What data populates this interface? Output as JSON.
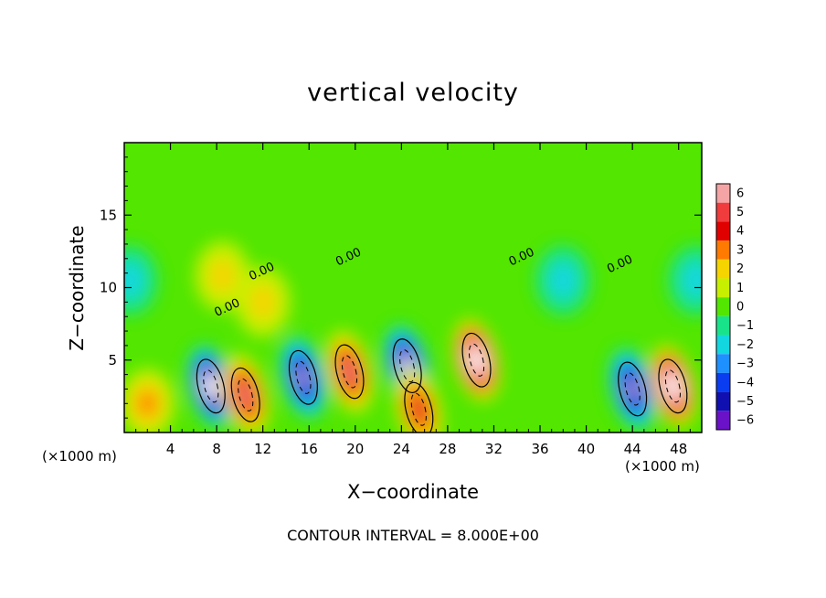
{
  "chart_data": {
    "type": "heatmap",
    "title": "vertical velocity",
    "xlabel": "X−coordinate",
    "ylabel": "Z−coordinate",
    "x_unit_left": "(×1000 m)",
    "x_unit_right": "(×1000 m)",
    "note": "CONTOUR INTERVAL =  8.000E+00",
    "xlim": [
      0,
      50
    ],
    "ylim": [
      0,
      20
    ],
    "xticks": [
      4,
      8,
      12,
      16,
      20,
      24,
      28,
      32,
      36,
      40,
      44,
      48
    ],
    "yticks": [
      5,
      10,
      15
    ],
    "contour_labels": [
      "0.00",
      "0.00",
      "0.00",
      "0.00",
      "0.00"
    ],
    "colorbar": {
      "levels": [
        6,
        5,
        4,
        3,
        2,
        1,
        0,
        -1,
        -2,
        -3,
        -4,
        -5,
        -6
      ],
      "labels": [
        "6",
        "5",
        "4",
        "3",
        "2",
        "1",
        "0",
        "−1",
        "−2",
        "−3",
        "−4",
        "−5",
        "−6"
      ],
      "colors": [
        "#f4a4a4",
        "#f03c3c",
        "#e10000",
        "#ff7a00",
        "#f5d400",
        "#c6f000",
        "#52e600",
        "#19e38a",
        "#12d6e0",
        "#1e90ff",
        "#0a3cf0",
        "#1010b0",
        "#6a12c8"
      ]
    },
    "features": [
      {
        "x": 7.5,
        "z": 3.2,
        "w": -9
      },
      {
        "x": 10.5,
        "z": 2.6,
        "w": 6
      },
      {
        "x": 15.5,
        "z": 3.8,
        "w": -7
      },
      {
        "x": 19.5,
        "z": 4.2,
        "w": 6
      },
      {
        "x": 24.5,
        "z": 4.6,
        "w": -8
      },
      {
        "x": 25.5,
        "z": 1.6,
        "w": 5
      },
      {
        "x": 30.5,
        "z": 5.0,
        "w": 9
      },
      {
        "x": 44.0,
        "z": 3.0,
        "w": -7
      },
      {
        "x": 47.5,
        "z": 3.2,
        "w": 9
      },
      {
        "x": 2.0,
        "z": 2.0,
        "w": 3
      },
      {
        "x": 8.5,
        "z": 10.8,
        "w": 2
      },
      {
        "x": 12.0,
        "z": 9.0,
        "w": 2
      },
      {
        "x": 38.0,
        "z": 10.5,
        "w": -2
      },
      {
        "x": 49.5,
        "z": 10.5,
        "w": -2
      },
      {
        "x": 0.5,
        "z": 10.5,
        "w": -2
      }
    ]
  },
  "colors": {
    "background": "#52e600"
  }
}
